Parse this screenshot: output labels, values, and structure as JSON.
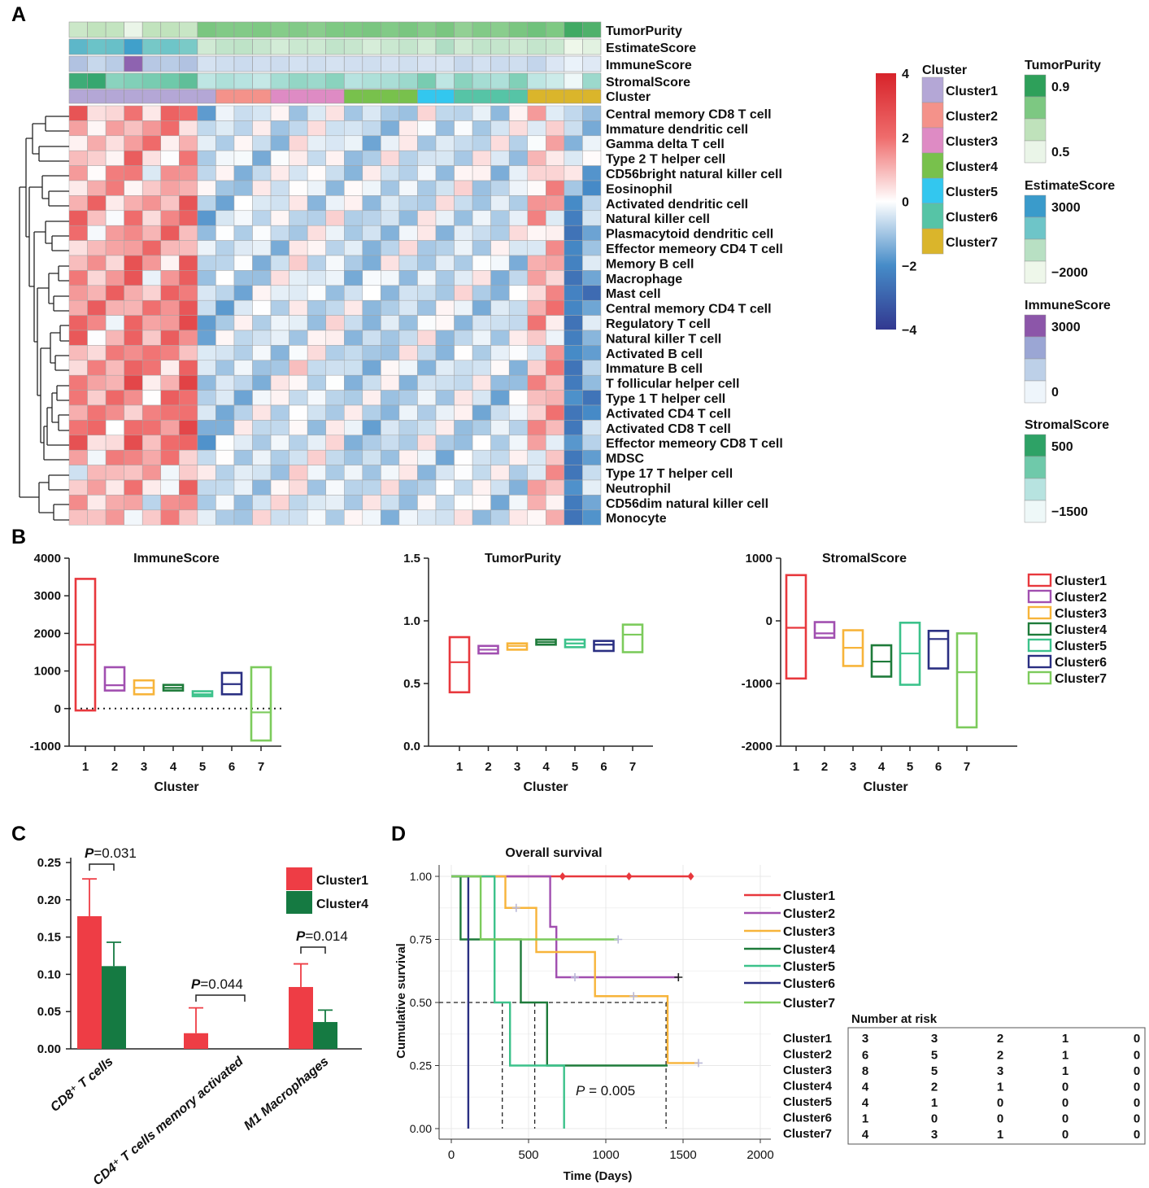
{
  "chart_data": [
    {
      "panel": "A",
      "type": "heatmap",
      "annotation_tracks": [
        "TumorPurity",
        "EstimateScore",
        "ImmuneScore",
        "StromalScore",
        "Cluster"
      ],
      "cell_types": [
        "Central memory CD8 T cell",
        "Immature dendritic cell",
        "Gamma delta T cell",
        "Type 2 T helper cell",
        "CD56bright natural killer cell",
        "Eosinophil",
        "Activated dendritic cell",
        "Natural killer cell",
        "Plasmacytoid dendritic cell",
        "Effector memeory CD4 T cell",
        "Memory B cell",
        "Macrophage",
        "Mast cell",
        "Central memory CD4 T cell",
        "Regulatory T cell",
        "Natural killer T cell",
        "Activated B cell",
        "Immature  B cell",
        "T follicular helper cell",
        "Type 1 T helper cell",
        "Activated CD4 T cell",
        "Activated CD8 T cell",
        "Effector memeory CD8 T cell",
        "MDSC",
        "Type 17 T helper cell",
        "Neutrophil",
        "CD56dim natural killer cell",
        "Monocyte"
      ],
      "sample_clusters": [
        1,
        1,
        1,
        1,
        1,
        1,
        1,
        1,
        2,
        2,
        2,
        3,
        3,
        3,
        3,
        4,
        4,
        4,
        4,
        5,
        5,
        6,
        6,
        6,
        6,
        7,
        7,
        7,
        7
      ],
      "sample_tracks": {
        "TumorPurity": [
          0.62,
          0.66,
          0.65,
          0.5,
          0.66,
          0.66,
          0.63,
          0.84,
          0.82,
          0.82,
          0.83,
          0.81,
          0.82,
          0.8,
          0.83,
          0.83,
          0.84,
          0.82,
          0.84,
          0.81,
          0.84,
          0.78,
          0.82,
          0.8,
          0.84,
          0.86,
          0.83,
          0.96,
          0.93
        ],
        "EstimateScore": [
          2000,
          1500,
          1600,
          3000,
          1200,
          1400,
          1100,
          -1200,
          -700,
          -600,
          -900,
          -1300,
          -1000,
          -1100,
          -700,
          -900,
          -1400,
          -1000,
          -800,
          -1300,
          -200,
          -1200,
          -700,
          -800,
          -1100,
          -800,
          -1000,
          -2200,
          -1800
        ],
        "ImmuneScore": [
          1500,
          800,
          1200,
          3400,
          1300,
          1200,
          1500,
          450,
          600,
          700,
          550,
          650,
          500,
          600,
          450,
          550,
          600,
          480,
          570,
          400,
          380,
          800,
          500,
          700,
          600,
          900,
          300,
          -100,
          200
        ],
        "StromalScore": [
          600,
          700,
          -300,
          -200,
          -100,
          0,
          200,
          -900,
          -700,
          -800,
          -1000,
          -600,
          -400,
          -500,
          -300,
          -800,
          -700,
          -650,
          -500,
          -100,
          -900,
          -300,
          -600,
          -700,
          -200,
          -900,
          -1100,
          -1600,
          -500
        ]
      },
      "color_scale": {
        "ticks": [
          4,
          2,
          0,
          -2,
          -4
        ],
        "min": -4,
        "max": 4
      },
      "cluster_legend_title": "Cluster",
      "cluster_colors": [
        "#b4a7d6",
        "#f4928a",
        "#de8bc4",
        "#78c14c",
        "#33c7ef",
        "#56c4a6",
        "#dab52b"
      ],
      "legends": {
        "TumorPurity": {
          "title": "TumorPurity",
          "high": "0.9",
          "low": "0.5",
          "colors": [
            "#2ea05a",
            "#7dc882",
            "#bfe2bb",
            "#eaf5e8"
          ]
        },
        "EstimateScore": {
          "title": "EstimateScore",
          "high": "3000",
          "low": "−2000",
          "colors": [
            "#3a9bcb",
            "#6ec5c8",
            "#b8e0c3",
            "#eef7ea"
          ]
        },
        "ImmuneScore": {
          "title": "ImmuneScore",
          "high": "3000",
          "low": "0",
          "colors": [
            "#8c56a9",
            "#9ba6d4",
            "#bdd0e8",
            "#eef5fb"
          ]
        },
        "StromalScore": {
          "title": "StromalScore",
          "high": "500",
          "low": "−1500",
          "colors": [
            "#2ea266",
            "#6fc9aa",
            "#b7e3e0",
            "#eef8f8"
          ]
        }
      }
    },
    {
      "panel": "B",
      "type": "box",
      "xlabel": "Cluster",
      "categories": [
        "1",
        "2",
        "3",
        "4",
        "5",
        "6",
        "7"
      ],
      "colors": [
        "#e8383d",
        "#a14fb0",
        "#f7b43a",
        "#1e7b3a",
        "#3cc28b",
        "#2a2f82",
        "#7ccb5c"
      ],
      "legend": [
        "Cluster1",
        "Cluster2",
        "Cluster3",
        "Cluster4",
        "Cluster5",
        "Cluster6",
        "Cluster7"
      ],
      "subplots": [
        {
          "title": "ImmuneScore",
          "yticks": [
            "4000",
            "3000",
            "2000",
            "1000",
            "0",
            "-1000"
          ],
          "ylim": [
            -1000,
            4000
          ],
          "boxes": [
            [
              -50,
              1700,
              3450
            ],
            [
              480,
              620,
              1100
            ],
            [
              380,
              550,
              750
            ],
            [
              480,
              550,
              630
            ],
            [
              330,
              380,
              460
            ],
            [
              380,
              650,
              950
            ],
            [
              -850,
              -100,
              1100
            ]
          ],
          "reference_line": 0
        },
        {
          "title": "TumorPurity",
          "yticks": [
            "1.5",
            "1.0",
            "0.5",
            "0.0"
          ],
          "ylim": [
            0,
            1.5
          ],
          "boxes": [
            [
              0.43,
              0.67,
              0.87
            ],
            [
              0.74,
              0.77,
              0.8
            ],
            [
              0.77,
              0.8,
              0.82
            ],
            [
              0.81,
              0.83,
              0.85
            ],
            [
              0.79,
              0.82,
              0.85
            ],
            [
              0.76,
              0.81,
              0.84
            ],
            [
              0.75,
              0.89,
              0.97
            ]
          ]
        },
        {
          "title": "StromalScore",
          "yticks": [
            "1000",
            "0",
            "-1000",
            "-2000"
          ],
          "ylim": [
            -2000,
            1000
          ],
          "boxes": [
            [
              -920,
              -110,
              730
            ],
            [
              -270,
              -200,
              -20
            ],
            [
              -720,
              -430,
              -150
            ],
            [
              -890,
              -650,
              -390
            ],
            [
              -1020,
              -520,
              -30
            ],
            [
              -760,
              -290,
              -160
            ],
            [
              -1700,
              -820,
              -200
            ]
          ]
        }
      ]
    },
    {
      "panel": "C",
      "type": "bar",
      "categories": [
        "CD8⁺ T cells",
        "CD4⁺ T cells memory activated",
        "M1 Macrophages"
      ],
      "series": [
        {
          "name": "Cluster1",
          "color": "#ee3d45",
          "values": [
            0.178,
            0.021,
            0.083
          ],
          "errors": [
            0.05,
            0.034,
            0.031
          ]
        },
        {
          "name": "Cluster4",
          "color": "#157a42",
          "values": [
            0.111,
            0.0,
            0.036
          ],
          "errors": [
            0.032,
            0.0,
            0.016
          ]
        }
      ],
      "yticks": [
        "0.25",
        "0.20",
        "0.15",
        "0.10",
        "0.05",
        "0.00"
      ],
      "ylim": [
        0,
        0.25
      ],
      "pvalues": [
        {
          "label": "P",
          "value": "=0.031"
        },
        {
          "label": "P",
          "value": "=0.044"
        },
        {
          "label": "P",
          "value": "=0.014"
        }
      ]
    },
    {
      "panel": "D",
      "type": "line",
      "title": "Overall survival",
      "xlabel": "Time (Days)",
      "ylabel": "Cumulative survival",
      "xticks": [
        "0",
        "500",
        "1000",
        "1500",
        "2000"
      ],
      "yticks": [
        "1.00",
        "0.75",
        "0.50",
        "0.25",
        "0.00"
      ],
      "xlim": [
        0,
        2000
      ],
      "ylim": [
        0,
        1
      ],
      "pvalue_label": "P",
      "pvalue_text": " = 0.005",
      "series": [
        {
          "name": "Cluster1",
          "color": "#e8383d",
          "steps": [
            [
              0,
              1
            ],
            [
              1550,
              1
            ]
          ],
          "censor": [
            720,
            1150,
            1550
          ]
        },
        {
          "name": "Cluster2",
          "color": "#a14fb0",
          "steps": [
            [
              0,
              1
            ],
            [
              640,
              1
            ],
            [
              640,
              0.8
            ],
            [
              680,
              0.8
            ],
            [
              680,
              0.6
            ],
            [
              1470,
              0.6
            ]
          ],
          "censor": [
            800,
            1470
          ]
        },
        {
          "name": "Cluster3",
          "color": "#f7b43a",
          "steps": [
            [
              0,
              1
            ],
            [
              350,
              1
            ],
            [
              350,
              0.875
            ],
            [
              550,
              0.875
            ],
            [
              550,
              0.7
            ],
            [
              930,
              0.7
            ],
            [
              930,
              0.525
            ],
            [
              1400,
              0.525
            ],
            [
              1400,
              0.26
            ],
            [
              1600,
              0.26
            ]
          ],
          "censor": [
            420,
            1180,
            1600
          ]
        },
        {
          "name": "Cluster4",
          "color": "#1e7b3a",
          "steps": [
            [
              0,
              1
            ],
            [
              60,
              1
            ],
            [
              60,
              0.75
            ],
            [
              450,
              0.75
            ],
            [
              450,
              0.5
            ],
            [
              620,
              0.5
            ],
            [
              620,
              0.25
            ],
            [
              1400,
              0.25
            ]
          ],
          "censor": []
        },
        {
          "name": "Cluster5",
          "color": "#3cc28b",
          "steps": [
            [
              0,
              1
            ],
            [
              280,
              1
            ],
            [
              280,
              0.5
            ],
            [
              380,
              0.5
            ],
            [
              380,
              0.25
            ],
            [
              730,
              0.25
            ],
            [
              730,
              0
            ]
          ],
          "censor": []
        },
        {
          "name": "Cluster6",
          "color": "#2a2f82",
          "steps": [
            [
              0,
              1
            ],
            [
              110,
              1
            ],
            [
              110,
              0
            ]
          ],
          "censor": []
        },
        {
          "name": "Cluster7",
          "color": "#7ccb5c",
          "steps": [
            [
              0,
              1
            ],
            [
              190,
              1
            ],
            [
              190,
              0.75
            ],
            [
              1080,
              0.75
            ]
          ],
          "censor": [
            1080
          ]
        }
      ],
      "risk_table": {
        "title": "Number at risk",
        "rows": [
          {
            "name": "Cluster1",
            "values": [
              "3",
              "3",
              "2",
              "1",
              "0"
            ]
          },
          {
            "name": "Cluster2",
            "values": [
              "6",
              "5",
              "2",
              "1",
              "0"
            ]
          },
          {
            "name": "Cluster3",
            "values": [
              "8",
              "5",
              "3",
              "1",
              "0"
            ]
          },
          {
            "name": "Cluster4",
            "values": [
              "4",
              "2",
              "1",
              "0",
              "0"
            ]
          },
          {
            "name": "Cluster5",
            "values": [
              "4",
              "1",
              "0",
              "0",
              "0"
            ]
          },
          {
            "name": "Cluster6",
            "values": [
              "1",
              "0",
              "0",
              "0",
              "0"
            ]
          },
          {
            "name": "Cluster7",
            "values": [
              "4",
              "3",
              "1",
              "0",
              "0"
            ]
          }
        ]
      }
    }
  ],
  "panel_labels": [
    "A",
    "B",
    "C",
    "D"
  ]
}
